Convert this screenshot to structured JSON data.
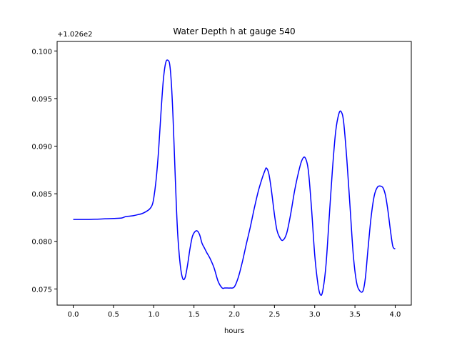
{
  "chart_data": {
    "type": "line",
    "title": "Water Depth h at gauge 540",
    "xlabel": "hours",
    "ylabel": "",
    "y_offset_label": "+1.026e2",
    "xlim": [
      -0.2,
      4.2
    ],
    "ylim": [
      0.0733,
      0.101
    ],
    "xticks": [
      0.0,
      0.5,
      1.0,
      1.5,
      2.0,
      2.5,
      3.0,
      3.5,
      4.0
    ],
    "xtick_labels": [
      "0.0",
      "0.5",
      "1.0",
      "1.5",
      "2.0",
      "2.5",
      "3.0",
      "3.5",
      "4.0"
    ],
    "yticks": [
      0.075,
      0.08,
      0.085,
      0.09,
      0.095,
      0.1
    ],
    "ytick_labels": [
      "0.075",
      "0.080",
      "0.085",
      "0.090",
      "0.095",
      "0.100"
    ],
    "grid": false,
    "series": [
      {
        "color": "#0000ff",
        "x": [
          0.0,
          0.1,
          0.2,
          0.3,
          0.4,
          0.5,
          0.6,
          0.65,
          0.7,
          0.75,
          0.8,
          0.85,
          0.9,
          0.95,
          0.98,
          1.0,
          1.03,
          1.06,
          1.09,
          1.12,
          1.15,
          1.18,
          1.2,
          1.22,
          1.24,
          1.26,
          1.28,
          1.3,
          1.33,
          1.36,
          1.39,
          1.42,
          1.45,
          1.48,
          1.51,
          1.54,
          1.57,
          1.6,
          1.63,
          1.66,
          1.7,
          1.75,
          1.8,
          1.85,
          1.88,
          1.9,
          1.95,
          2.0,
          2.05,
          2.1,
          2.15,
          2.2,
          2.25,
          2.3,
          2.35,
          2.38,
          2.4,
          2.43,
          2.46,
          2.5,
          2.53,
          2.56,
          2.6,
          2.65,
          2.7,
          2.75,
          2.8,
          2.84,
          2.88,
          2.92,
          2.96,
          3.0,
          3.04,
          3.07,
          3.1,
          3.14,
          3.18,
          3.22,
          3.26,
          3.3,
          3.33,
          3.36,
          3.4,
          3.44,
          3.48,
          3.52,
          3.56,
          3.6,
          3.63,
          3.66,
          3.7,
          3.74,
          3.78,
          3.82,
          3.85,
          3.88,
          3.91,
          3.94,
          3.97,
          4.0
        ],
        "y": [
          0.0823,
          0.0823,
          0.0823,
          0.08233,
          0.08237,
          0.0824,
          0.08245,
          0.0826,
          0.08265,
          0.0827,
          0.0828,
          0.0829,
          0.0831,
          0.0834,
          0.0838,
          0.0845,
          0.0865,
          0.0895,
          0.0935,
          0.097,
          0.0988,
          0.099,
          0.0985,
          0.0965,
          0.093,
          0.0885,
          0.084,
          0.0805,
          0.0775,
          0.0761,
          0.0762,
          0.0775,
          0.0792,
          0.0805,
          0.081,
          0.0811,
          0.0807,
          0.0798,
          0.0793,
          0.0788,
          0.0782,
          0.0772,
          0.0758,
          0.0751,
          0.0751,
          0.0751,
          0.0751,
          0.0752,
          0.0762,
          0.0778,
          0.0797,
          0.0815,
          0.0835,
          0.0853,
          0.0867,
          0.0874,
          0.0877,
          0.0871,
          0.0855,
          0.0828,
          0.0812,
          0.0805,
          0.0801,
          0.0808,
          0.0828,
          0.0853,
          0.0873,
          0.0885,
          0.0888,
          0.0875,
          0.0835,
          0.0786,
          0.0755,
          0.0744,
          0.0748,
          0.0775,
          0.0825,
          0.0875,
          0.0915,
          0.0934,
          0.0936,
          0.0925,
          0.0885,
          0.0835,
          0.0785,
          0.0757,
          0.0748,
          0.0748,
          0.0762,
          0.079,
          0.0825,
          0.0848,
          0.0857,
          0.0858,
          0.0856,
          0.0848,
          0.0832,
          0.0812,
          0.0795,
          0.0792
        ]
      }
    ]
  }
}
